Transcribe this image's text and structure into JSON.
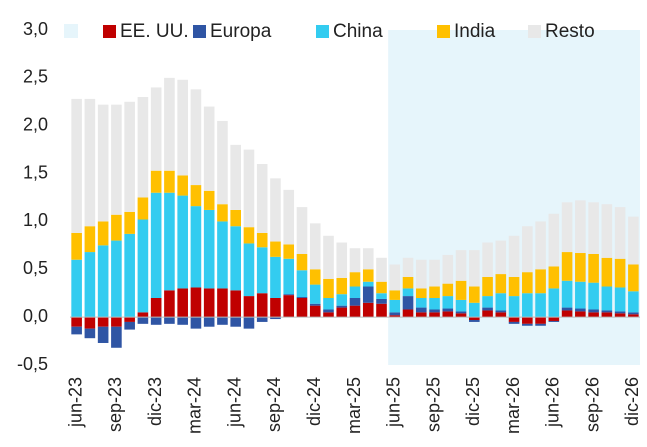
{
  "chart_data": {
    "type": "bar",
    "stacked": true,
    "categories": [
      "jun-23",
      null,
      null,
      "sep-23",
      null,
      null,
      "dic-23",
      null,
      null,
      "mar-24",
      null,
      null,
      "jun-24",
      null,
      null,
      "sep-24",
      null,
      null,
      "dic-24",
      null,
      null,
      "mar-25",
      null,
      null,
      "jun-25",
      null,
      null,
      "sep-25",
      null,
      null,
      "dic-25",
      null,
      null,
      "mar-26",
      null,
      null,
      "jun-26",
      null,
      null,
      "sep-26",
      null,
      null,
      "dic-26"
    ],
    "series": [
      {
        "name": "EE. UU.",
        "color": "#c00000",
        "values": [
          -0.1,
          -0.12,
          -0.1,
          -0.1,
          -0.05,
          0.05,
          0.2,
          0.28,
          0.3,
          0.31,
          0.3,
          0.3,
          0.28,
          0.22,
          0.25,
          0.2,
          0.23,
          0.2,
          0.12,
          0.05,
          0.1,
          0.12,
          0.15,
          0.14,
          0.02,
          0.08,
          0.05,
          0.05,
          0.06,
          0.04,
          -0.03,
          0.07,
          0.05,
          -0.05,
          -0.07,
          -0.07,
          -0.04,
          0.07,
          0.06,
          0.05,
          0.05,
          0.04,
          0.03
        ]
      },
      {
        "name": "Europa",
        "color": "#2f55a4",
        "values": [
          -0.08,
          -0.1,
          -0.17,
          -0.22,
          -0.08,
          -0.07,
          -0.08,
          -0.07,
          -0.08,
          -0.12,
          -0.1,
          -0.08,
          -0.1,
          -0.12,
          -0.05,
          -0.02,
          0.01,
          0.01,
          0.02,
          0.03,
          0.02,
          0.08,
          0.17,
          0.05,
          0.03,
          0.14,
          0.05,
          0.03,
          0.03,
          0.02,
          -0.02,
          0.03,
          0.02,
          -0.02,
          -0.02,
          -0.02,
          -0.01,
          0.03,
          0.03,
          0.03,
          0.02,
          0.02,
          0.02
        ]
      },
      {
        "name": "China",
        "color": "#33ccf0",
        "values": [
          0.6,
          0.68,
          0.75,
          0.8,
          0.87,
          0.97,
          1.1,
          1.02,
          0.97,
          0.85,
          0.82,
          0.7,
          0.67,
          0.55,
          0.48,
          0.43,
          0.37,
          0.28,
          0.2,
          0.12,
          0.12,
          0.12,
          0.05,
          0.06,
          0.13,
          0.08,
          0.1,
          0.12,
          0.13,
          0.12,
          0.15,
          0.12,
          0.18,
          0.22,
          0.25,
          0.25,
          0.3,
          0.28,
          0.28,
          0.28,
          0.25,
          0.25,
          0.22
        ]
      },
      {
        "name": "India",
        "color": "#ffc000",
        "values": [
          0.28,
          0.27,
          0.25,
          0.27,
          0.23,
          0.23,
          0.23,
          0.23,
          0.21,
          0.22,
          0.2,
          0.18,
          0.17,
          0.17,
          0.15,
          0.16,
          0.15,
          0.17,
          0.16,
          0.2,
          0.17,
          0.15,
          0.13,
          0.12,
          0.1,
          0.12,
          0.1,
          0.12,
          0.13,
          0.2,
          0.17,
          0.2,
          0.2,
          0.2,
          0.22,
          0.25,
          0.23,
          0.3,
          0.3,
          0.3,
          0.3,
          0.3,
          0.28
        ]
      },
      {
        "name": "Resto",
        "color": "#e8e8e8",
        "values": [
          1.4,
          1.33,
          1.22,
          1.15,
          1.15,
          1.05,
          0.87,
          0.97,
          1.0,
          1.0,
          0.88,
          0.87,
          0.68,
          0.81,
          0.72,
          0.66,
          0.57,
          0.49,
          0.48,
          0.45,
          0.37,
          0.25,
          0.22,
          0.25,
          0.27,
          0.2,
          0.3,
          0.28,
          0.3,
          0.32,
          0.38,
          0.36,
          0.35,
          0.43,
          0.48,
          0.5,
          0.55,
          0.52,
          0.55,
          0.54,
          0.56,
          0.54,
          0.5
        ]
      }
    ],
    "ylim": [
      -0.5,
      3.0
    ],
    "yticks": [
      {
        "value": -0.5,
        "label": "-0,5"
      },
      {
        "value": 0,
        "label": "0,0"
      },
      {
        "value": 0.5,
        "label": "0,5"
      },
      {
        "value": 1.0,
        "label": "1,0"
      },
      {
        "value": 1.5,
        "label": "1,5"
      },
      {
        "value": 2.0,
        "label": "2,0"
      },
      {
        "value": 2.5,
        "label": "2,5"
      },
      {
        "value": 3.0,
        "label": "3,0"
      }
    ],
    "legend": "top"
  }
}
